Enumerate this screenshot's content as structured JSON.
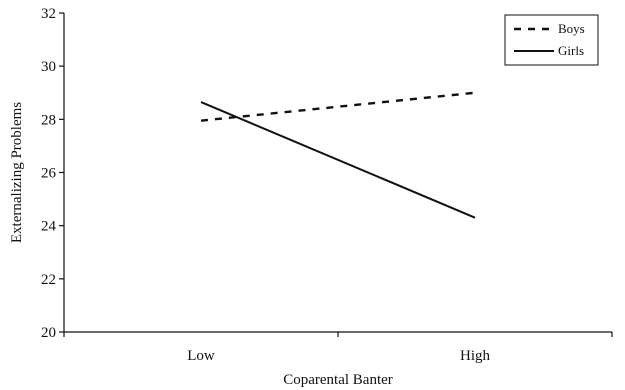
{
  "chart_data": {
    "type": "line",
    "categories": [
      "Low",
      "High"
    ],
    "series": [
      {
        "name": "Boys",
        "values": [
          27.95,
          29.0
        ],
        "style": "dashed",
        "color": "#111111"
      },
      {
        "name": "Girls",
        "values": [
          28.65,
          24.3
        ],
        "style": "solid",
        "color": "#111111"
      }
    ],
    "xlabel": "Coparental Banter",
    "ylabel": "Externalizing Problems",
    "ylim": [
      20,
      32
    ],
    "yticks": [
      20,
      22,
      24,
      26,
      28,
      30,
      32
    ],
    "grid": false,
    "legend_position": "top-right"
  }
}
